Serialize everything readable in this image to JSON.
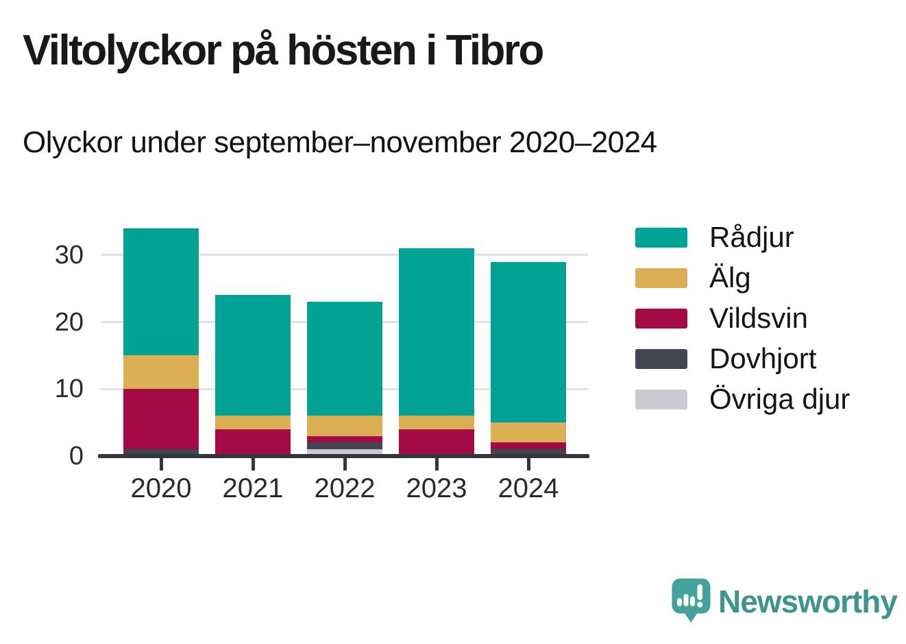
{
  "header": {
    "title": "Viltolyckor på hösten i Tibro",
    "subtitle": "Olyckor under september–november 2020–2024"
  },
  "chart_data": {
    "type": "bar",
    "stacked": true,
    "title": "Viltolyckor på hösten i Tibro",
    "subtitle": "Olyckor under september–november 2020–2024",
    "categories": [
      "2020",
      "2021",
      "2022",
      "2023",
      "2024"
    ],
    "series": [
      {
        "name": "Rådjur",
        "color": "#00a295",
        "values": [
          19,
          18,
          17,
          25,
          24
        ]
      },
      {
        "name": "Älg",
        "color": "#dcaf55",
        "values": [
          5,
          2,
          3,
          2,
          3
        ]
      },
      {
        "name": "Vildsvin",
        "color": "#a40b45",
        "values": [
          9,
          4,
          1,
          4,
          1
        ]
      },
      {
        "name": "Dovhjort",
        "color": "#434552",
        "values": [
          1,
          0,
          1,
          0,
          1
        ]
      },
      {
        "name": "Övriga djur",
        "color": "#c9cad2",
        "values": [
          0,
          0,
          1,
          0,
          0
        ]
      }
    ],
    "totals": [
      34,
      24,
      23,
      31,
      29
    ],
    "stack_order_bottom_to_top": [
      "Övriga djur",
      "Dovhjort",
      "Vildsvin",
      "Älg",
      "Rådjur"
    ],
    "xlabel": "",
    "ylabel": "",
    "ylim": [
      0,
      35
    ],
    "yticks": [
      0,
      10,
      20,
      30
    ],
    "grid": "horizontal",
    "legend_position": "right"
  },
  "footer": {
    "brand": "Newsworthy",
    "brand_color": "#3e948e",
    "logo_icon": "newsworthy-speech-bubble-bar-chart-icon"
  },
  "colors": {
    "background": "#ffffff",
    "axis": "#34353d",
    "gridline": "#e1e1e4",
    "title_text": "#191919"
  }
}
